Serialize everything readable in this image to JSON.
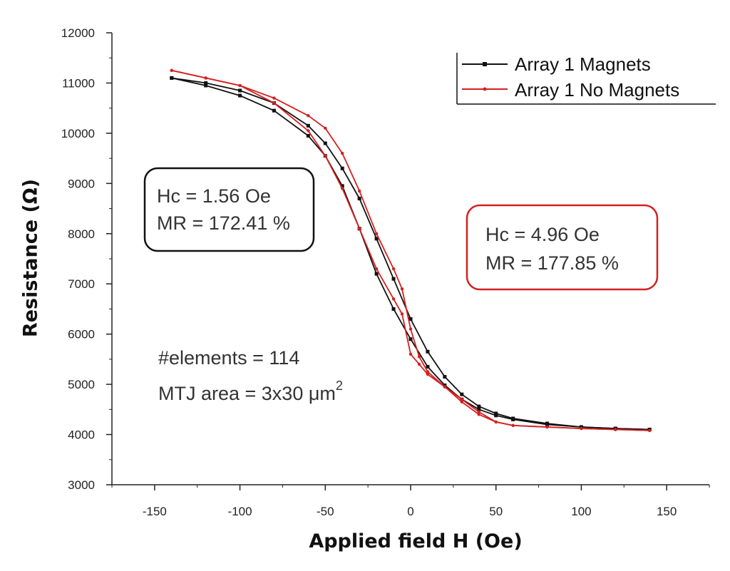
{
  "chart_data": {
    "type": "line",
    "title": "",
    "xlabel": "Applied field H (Oe)",
    "ylabel": "Resistance (Ω)",
    "xlim": [
      -175,
      175
    ],
    "ylim": [
      3000,
      12000
    ],
    "xticks": [
      "-150",
      "-100",
      "-50",
      "0",
      "50",
      "100",
      "150"
    ],
    "xtick_values": [
      -150,
      -100,
      -50,
      0,
      50,
      100,
      150
    ],
    "yticks": [
      "3000",
      "4000",
      "5000",
      "6000",
      "7000",
      "8000",
      "9000",
      "10000",
      "11000",
      "12000"
    ],
    "ytick_values": [
      3000,
      4000,
      5000,
      6000,
      7000,
      8000,
      9000,
      10000,
      11000,
      12000
    ],
    "legend_position": "top-right",
    "series": [
      {
        "name": "Array 1 Magnets",
        "color": "#111111",
        "marker": "square",
        "branches": [
          {
            "x": [
              -140,
              -120,
              -100,
              -80,
              -60,
              -50,
              -40,
              -30,
              -20,
              -10,
              0,
              10,
              20,
              30,
              40,
              50,
              60,
              80,
              100,
              120,
              140
            ],
            "y": [
              11100,
              10950,
              10750,
              10450,
              9950,
              9550,
              8950,
              8100,
              7200,
              6500,
              5900,
              5350,
              4980,
              4700,
              4500,
              4380,
              4300,
              4200,
              4150,
              4120,
              4100
            ]
          },
          {
            "x": [
              140,
              120,
              100,
              80,
              60,
              50,
              40,
              30,
              20,
              10,
              0,
              -10,
              -20,
              -30,
              -40,
              -50,
              -60,
              -80,
              -100,
              -120,
              -140
            ],
            "y": [
              4100,
              4120,
              4150,
              4220,
              4320,
              4420,
              4560,
              4800,
              5150,
              5650,
              6300,
              7100,
              7900,
              8700,
              9300,
              9800,
              10150,
              10600,
              10850,
              11000,
              11100
            ]
          }
        ]
      },
      {
        "name": "Array 1  No Magnets",
        "color": "#d42020",
        "marker": "dot",
        "branches": [
          {
            "x": [
              -140,
              -120,
              -100,
              -80,
              -60,
              -50,
              -40,
              -30,
              -20,
              -10,
              -5,
              0,
              5,
              10,
              20,
              30,
              40,
              50,
              60,
              80,
              100,
              120,
              140
            ],
            "y": [
              11250,
              11100,
              10950,
              10700,
              10350,
              10100,
              9600,
              8850,
              8000,
              7300,
              6900,
              6100,
              5550,
              5250,
              4950,
              4650,
              4400,
              4250,
              4180,
              4150,
              4120,
              4100,
              4080
            ]
          },
          {
            "x": [
              140,
              120,
              100,
              80,
              60,
              50,
              40,
              30,
              20,
              10,
              5,
              0,
              -5,
              -10,
              -20,
              -30,
              -40,
              -50,
              -60,
              -80,
              -100,
              -120,
              -140
            ],
            "y": [
              4080,
              4100,
              4120,
              4150,
              4180,
              4250,
              4450,
              4700,
              4950,
              5200,
              5400,
              5600,
              6400,
              6700,
              7300,
              8100,
              8900,
              9550,
              10050,
              10600,
              10950,
              11100,
              11250
            ]
          }
        ]
      }
    ],
    "annotations": [
      {
        "id": "magnets",
        "lines": [
          "Hc = 1.56 Oe",
          "MR = 172.41 %"
        ],
        "border_color": "#111111"
      },
      {
        "id": "nomagnets",
        "lines": [
          "Hc = 4.96 Oe",
          "MR = 177.85 %"
        ],
        "border_color": "#d42020"
      },
      {
        "id": "elements",
        "lines": [
          "#elements = 114",
          "MTJ area = 3x30 μm"
        ],
        "superscript": "2"
      }
    ]
  }
}
